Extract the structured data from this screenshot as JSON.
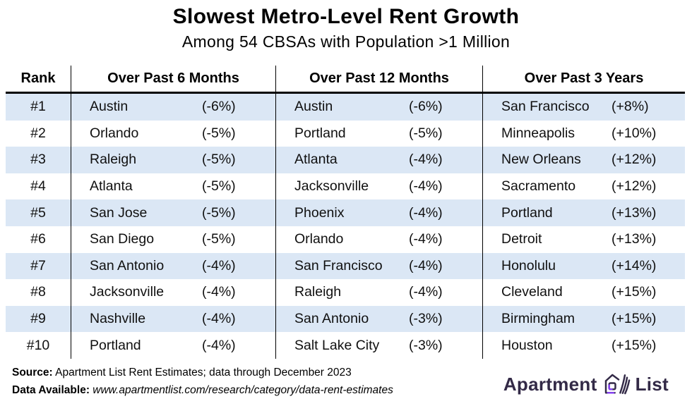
{
  "chart_data": {
    "type": "table",
    "title": "Slowest Metro-Level Rent Growth",
    "subtitle": "Among 54 CBSAs with Population >1 Million",
    "columns": {
      "rank": "Rank",
      "m6": "Over Past 6 Months",
      "m12": "Over Past 12 Months",
      "y3": "Over Past 3 Years"
    },
    "rows": [
      {
        "rank": "#1",
        "m6": {
          "city": "Austin",
          "value": "(-6%)"
        },
        "m12": {
          "city": "Austin",
          "value": "(-6%)"
        },
        "y3": {
          "city": "San Francisco",
          "value": "(+8%)"
        }
      },
      {
        "rank": "#2",
        "m6": {
          "city": "Orlando",
          "value": "(-5%)"
        },
        "m12": {
          "city": "Portland",
          "value": "(-5%)"
        },
        "y3": {
          "city": "Minneapolis",
          "value": "(+10%)"
        }
      },
      {
        "rank": "#3",
        "m6": {
          "city": "Raleigh",
          "value": "(-5%)"
        },
        "m12": {
          "city": "Atlanta",
          "value": "(-4%)"
        },
        "y3": {
          "city": "New Orleans",
          "value": "(+12%)"
        }
      },
      {
        "rank": "#4",
        "m6": {
          "city": "Atlanta",
          "value": "(-5%)"
        },
        "m12": {
          "city": "Jacksonville",
          "value": "(-4%)"
        },
        "y3": {
          "city": "Sacramento",
          "value": "(+12%)"
        }
      },
      {
        "rank": "#5",
        "m6": {
          "city": "San Jose",
          "value": "(-5%)"
        },
        "m12": {
          "city": "Phoenix",
          "value": "(-4%)"
        },
        "y3": {
          "city": "Portland",
          "value": "(+13%)"
        }
      },
      {
        "rank": "#6",
        "m6": {
          "city": "San Diego",
          "value": "(-5%)"
        },
        "m12": {
          "city": "Orlando",
          "value": "(-4%)"
        },
        "y3": {
          "city": "Detroit",
          "value": "(+13%)"
        }
      },
      {
        "rank": "#7",
        "m6": {
          "city": "San Antonio",
          "value": "(-4%)"
        },
        "m12": {
          "city": "San Francisco",
          "value": "(-4%)"
        },
        "y3": {
          "city": "Honolulu",
          "value": "(+14%)"
        }
      },
      {
        "rank": "#8",
        "m6": {
          "city": "Jacksonville",
          "value": "(-4%)"
        },
        "m12": {
          "city": "Raleigh",
          "value": "(-4%)"
        },
        "y3": {
          "city": "Cleveland",
          "value": "(+15%)"
        }
      },
      {
        "rank": "#9",
        "m6": {
          "city": "Nashville",
          "value": "(-4%)"
        },
        "m12": {
          "city": "San Antonio",
          "value": "(-3%)"
        },
        "y3": {
          "city": "Birmingham",
          "value": "(+15%)"
        }
      },
      {
        "rank": "#10",
        "m6": {
          "city": "Portland",
          "value": "(-4%)"
        },
        "m12": {
          "city": "Salt Lake City",
          "value": "(-3%)"
        },
        "y3": {
          "city": "Houston",
          "value": "(+15%)"
        }
      }
    ],
    "series": [
      {
        "name": "Over Past 6 Months",
        "cities": [
          "Austin",
          "Orlando",
          "Raleigh",
          "Atlanta",
          "San Jose",
          "San Diego",
          "San Antonio",
          "Jacksonville",
          "Nashville",
          "Portland"
        ],
        "values_pct": [
          -6,
          -5,
          -5,
          -5,
          -5,
          -5,
          -4,
          -4,
          -4,
          -4
        ]
      },
      {
        "name": "Over Past 12 Months",
        "cities": [
          "Austin",
          "Portland",
          "Atlanta",
          "Jacksonville",
          "Phoenix",
          "Orlando",
          "San Francisco",
          "Raleigh",
          "San Antonio",
          "Salt Lake City"
        ],
        "values_pct": [
          -6,
          -5,
          -4,
          -4,
          -4,
          -4,
          -4,
          -4,
          -3,
          -3
        ]
      },
      {
        "name": "Over Past 3 Years",
        "cities": [
          "San Francisco",
          "Minneapolis",
          "New Orleans",
          "Sacramento",
          "Portland",
          "Detroit",
          "Honolulu",
          "Cleveland",
          "Birmingham",
          "Houston"
        ],
        "values_pct": [
          8,
          10,
          12,
          12,
          13,
          13,
          14,
          15,
          15,
          15
        ]
      }
    ],
    "layout": {
      "row_stripe_color": "#dbe7f5",
      "border_color": "#000000",
      "striped_rows": "odd"
    }
  },
  "footer": {
    "source_label": "Source:",
    "source_text": "Apartment List Rent Estimates; data through December 2023",
    "available_label": "Data Available:",
    "available_url": "www.apartmentlist.com/research/category/data-rent-estimates"
  },
  "logo": {
    "word_left": "Apartment",
    "word_right": "List",
    "icon": "apartment-list-house-icon",
    "dark_color": "#332a47",
    "purple_color": "#8640f4"
  }
}
